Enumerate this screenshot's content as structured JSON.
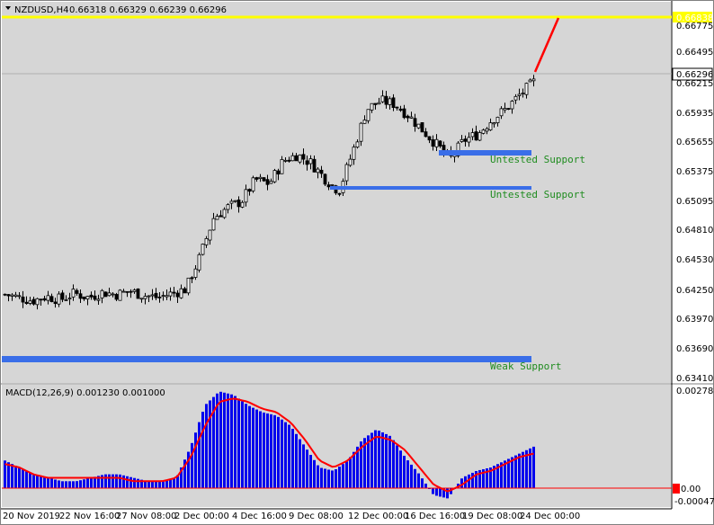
{
  "header": {
    "symbol": "NZDUSD,H4",
    "ohlc": "0.66318 0.66329 0.66239 0.66296"
  },
  "macd_header": {
    "title": "MACD(12,26,9) 0.001230 0.001000"
  },
  "colors": {
    "background": "#d6d6d6",
    "candle": "#000000",
    "support": "#3a6ee8",
    "resistance": "#ffff00",
    "forecast": "#ff0000",
    "macd_bars": "#0000ee",
    "signal": "#ff0000",
    "support_text": "#1f8c1f"
  },
  "chart_data": [
    {
      "type": "candlestick",
      "title": "NZDUSD,H4",
      "y_ticks": [
        "0.66775",
        "0.66495",
        "0.66215",
        "0.65935",
        "0.65655",
        "0.65375",
        "0.65095",
        "0.64810",
        "0.64530",
        "0.64250",
        "0.63970",
        "0.63690",
        "0.63410"
      ],
      "ylim": [
        0.6341,
        0.6692
      ],
      "x_ticks": [
        "20 Nov 2019",
        "22 Nov 16:00",
        "27 Nov 08:00",
        "2 Dec 00:00",
        "4 Dec 16:00",
        "9 Dec 08:00",
        "12 Dec 00:00",
        "16 Dec 16:00",
        "19 Dec 08:00",
        "24 Dec 00:00"
      ],
      "current_price": "0.66296",
      "resistance_label": "0.66838",
      "resistance_level": 0.66838,
      "close_trend": [
        0.6424,
        0.6421,
        0.6418,
        0.6422,
        0.6419,
        0.6425,
        0.6421,
        0.6426,
        0.6424,
        0.6427,
        0.6423,
        0.6421,
        0.6425,
        0.6429,
        0.646,
        0.6498,
        0.6508,
        0.6514,
        0.6535,
        0.6531,
        0.6553,
        0.6559,
        0.6551,
        0.6536,
        0.6524,
        0.6562,
        0.6603,
        0.6611,
        0.6608,
        0.6597,
        0.6583,
        0.6569,
        0.6555,
        0.6573,
        0.6579,
        0.6593,
        0.6603,
        0.6617,
        0.6629
      ],
      "forecast": [
        0.66296,
        0.66838
      ],
      "supports": [
        {
          "label": "Untested Support",
          "level": 0.6557,
          "start_index": 30
        },
        {
          "label": "Untested Support",
          "level": 0.6522,
          "start_index": 22
        },
        {
          "label": "Weak Support",
          "level": 0.6356,
          "start_index": 0
        }
      ]
    },
    {
      "type": "bar",
      "title": "MACD(12,26,9)",
      "macd": 0.00123,
      "signal": 0.001,
      "y_ticks": [
        "0.002785",
        "0.00",
        "-0.000474"
      ],
      "ylim": [
        -0.000474,
        0.002785
      ],
      "histogram_trend": [
        0.0008,
        0.0006,
        0.0004,
        0.0003,
        0.0002,
        0.0002,
        0.0003,
        0.0004,
        0.0004,
        0.0003,
        0.0002,
        0.0002,
        0.0003,
        0.0012,
        0.0024,
        0.0028,
        0.0027,
        0.0024,
        0.0022,
        0.0021,
        0.0018,
        0.0012,
        0.0006,
        0.0005,
        0.0008,
        0.0014,
        0.0017,
        0.0015,
        0.0009,
        0.0004,
        -0.0002,
        -0.0003,
        0.0003,
        0.0005,
        0.0006,
        0.0008,
        0.001,
        0.0012
      ],
      "signal_trend": [
        0.0007,
        0.0006,
        0.0004,
        0.0003,
        0.0003,
        0.0003,
        0.0003,
        0.0003,
        0.0003,
        0.0002,
        0.0002,
        0.0002,
        0.0003,
        0.0009,
        0.0018,
        0.0025,
        0.0026,
        0.0025,
        0.0023,
        0.0022,
        0.0019,
        0.0014,
        0.0008,
        0.0006,
        0.0008,
        0.0012,
        0.0015,
        0.0014,
        0.0011,
        0.0006,
        0.0001,
        -0.0001,
        0.0001,
        0.0004,
        0.0005,
        0.0007,
        0.0009,
        0.001
      ]
    }
  ]
}
